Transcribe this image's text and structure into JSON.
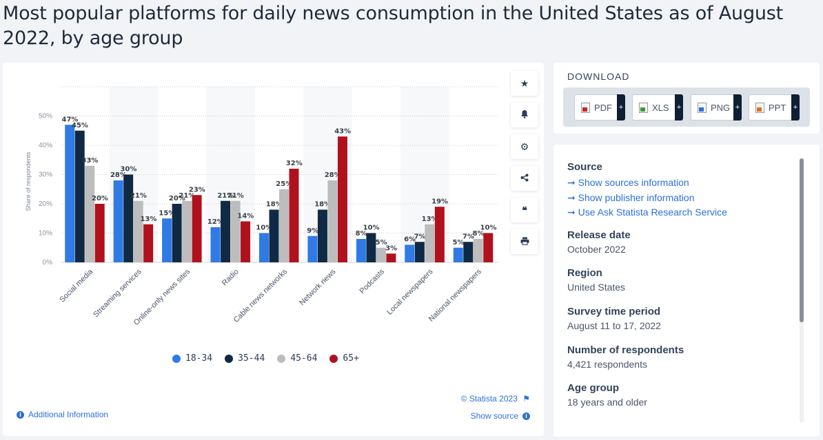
{
  "page": {
    "title": "Most popular platforms for daily news consumption in the United States as of August 2022, by age group"
  },
  "chart_data": {
    "type": "bar",
    "title": "",
    "xlabel": "",
    "ylabel": "Share of respondents",
    "ylim": [
      0,
      60
    ],
    "yticks": [
      "0%",
      "10%",
      "20%",
      "30%",
      "40%",
      "50%"
    ],
    "grid": true,
    "legend_position": "bottom",
    "categories": [
      "Social media",
      "Streaming services",
      "Online-only news sites",
      "Radio",
      "Cable news networks",
      "Network news",
      "Podcasts",
      "Local newspapers",
      "National newspapers"
    ],
    "series": [
      {
        "name": "18-34",
        "color": "#2f7ae5",
        "values": [
          47,
          28,
          15,
          12,
          10,
          9,
          8,
          6,
          5
        ]
      },
      {
        "name": "35-44",
        "color": "#102a45",
        "values": [
          45,
          30,
          20,
          21,
          18,
          18,
          10,
          7,
          7
        ]
      },
      {
        "name": "45-64",
        "color": "#bdbdbd",
        "values": [
          33,
          21,
          21,
          21,
          25,
          28,
          5,
          13,
          8
        ]
      },
      {
        "name": "65+",
        "color": "#b0121d",
        "values": [
          20,
          13,
          23,
          14,
          32,
          43,
          3,
          19,
          10
        ]
      }
    ]
  },
  "toolbar": {
    "icons": [
      "star-icon",
      "bell-icon",
      "gear-icon",
      "share-icon",
      "quote-icon",
      "print-icon"
    ],
    "glyphs": [
      "★",
      "🔔",
      "⚙",
      "⋖",
      "❝",
      "⎙"
    ]
  },
  "footer": {
    "credit": "© Statista 2023",
    "show_source": "Show source",
    "additional_info": "Additional Information"
  },
  "download": {
    "title": "DOWNLOAD",
    "buttons": [
      {
        "label": "PDF",
        "color": "#cc2222"
      },
      {
        "label": "XLS",
        "color": "#3a9a3a"
      },
      {
        "label": "PNG",
        "color": "#2c6fd8"
      },
      {
        "label": "PPT",
        "color": "#e07020"
      }
    ],
    "plus": "+"
  },
  "info": {
    "source_heading": "Source",
    "source_links": [
      "Show sources information",
      "Show publisher information",
      "Use Ask Statista Research Service"
    ],
    "link_arrow": "➞",
    "release_heading": "Release date",
    "release_value": "October 2022",
    "region_heading": "Region",
    "region_value": "United States",
    "survey_heading": "Survey time period",
    "survey_value": "August 11 to 17, 2022",
    "respondents_heading": "Number of respondents",
    "respondents_value": "4,421 respondents",
    "age_heading": "Age group",
    "age_value": "18 years and older"
  }
}
